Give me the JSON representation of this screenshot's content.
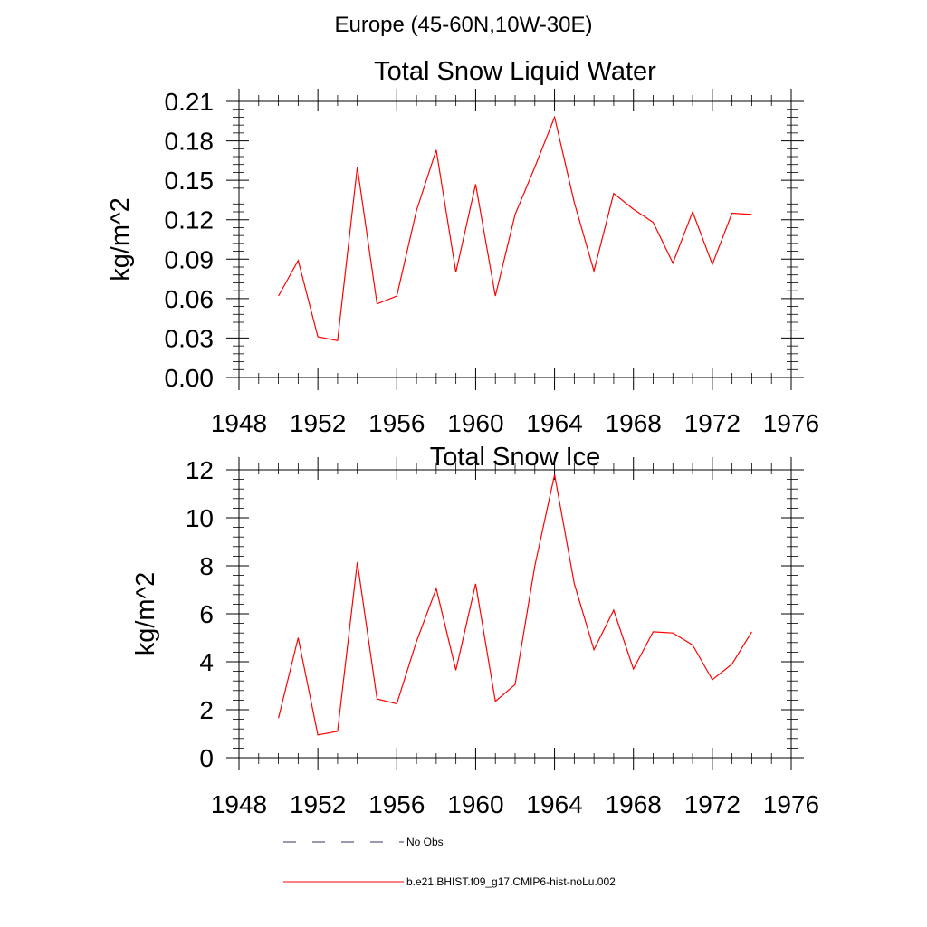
{
  "page_title": "Europe (45-60N,10W-30E)",
  "colors": {
    "model_line": "#ff0000",
    "obs_line": "#333366",
    "axis": "#000000"
  },
  "legend": {
    "items": [
      {
        "label": "No Obs",
        "style": "dashed",
        "color": "#333366"
      },
      {
        "label": "b.e21.BHIST.f09_g17.CMIP6-hist-noLu.002",
        "style": "solid",
        "color": "#ff0000"
      }
    ]
  },
  "chart_data": [
    {
      "type": "line",
      "title": "Total Snow Liquid Water",
      "xlabel": "",
      "ylabel": "kg/m^2",
      "xlim": [
        1948,
        1976
      ],
      "ylim": [
        0,
        0.21
      ],
      "xticks": [
        "1948",
        "1952",
        "1956",
        "1960",
        "1964",
        "1968",
        "1972",
        "1976"
      ],
      "yticks": [
        "0.00",
        "0.03",
        "0.06",
        "0.09",
        "0.12",
        "0.15",
        "0.18",
        "0.21"
      ],
      "grid": false,
      "series": [
        {
          "name": "b.e21.BHIST.f09_g17.CMIP6-hist-noLu.002",
          "color": "#ff0000",
          "x": [
            1950,
            1951,
            1952,
            1953,
            1954,
            1955,
            1956,
            1957,
            1958,
            1959,
            1960,
            1961,
            1962,
            1963,
            1964,
            1965,
            1966,
            1967,
            1968,
            1969,
            1970,
            1971,
            1972,
            1973,
            1974
          ],
          "values": [
            0.062,
            0.089,
            0.031,
            0.028,
            0.16,
            0.056,
            0.062,
            0.127,
            0.173,
            0.08,
            0.147,
            0.062,
            0.124,
            0.16,
            0.198,
            0.133,
            0.081,
            0.14,
            0.128,
            0.118,
            0.087,
            0.126,
            0.086,
            0.125,
            0.124
          ]
        }
      ]
    },
    {
      "type": "line",
      "title": "Total Snow Ice",
      "xlabel": "",
      "ylabel": "kg/m^2",
      "xlim": [
        1948,
        1976
      ],
      "ylim": [
        0,
        12
      ],
      "xticks": [
        "1948",
        "1952",
        "1956",
        "1960",
        "1964",
        "1968",
        "1972",
        "1976"
      ],
      "yticks": [
        "0",
        "2",
        "4",
        "6",
        "8",
        "10",
        "12"
      ],
      "grid": false,
      "series": [
        {
          "name": "b.e21.BHIST.f09_g17.CMIP6-hist-noLu.002",
          "color": "#ff0000",
          "x": [
            1950,
            1951,
            1952,
            1953,
            1954,
            1955,
            1956,
            1957,
            1958,
            1959,
            1960,
            1961,
            1962,
            1963,
            1964,
            1965,
            1966,
            1967,
            1968,
            1969,
            1970,
            1971,
            1972,
            1973,
            1974
          ],
          "values": [
            1.65,
            5.0,
            0.95,
            1.1,
            8.15,
            2.45,
            2.25,
            4.85,
            7.05,
            3.65,
            7.25,
            2.35,
            3.05,
            8.0,
            11.8,
            7.25,
            4.5,
            6.15,
            3.7,
            5.25,
            5.2,
            4.7,
            3.25,
            3.9,
            5.25
          ]
        }
      ]
    }
  ]
}
